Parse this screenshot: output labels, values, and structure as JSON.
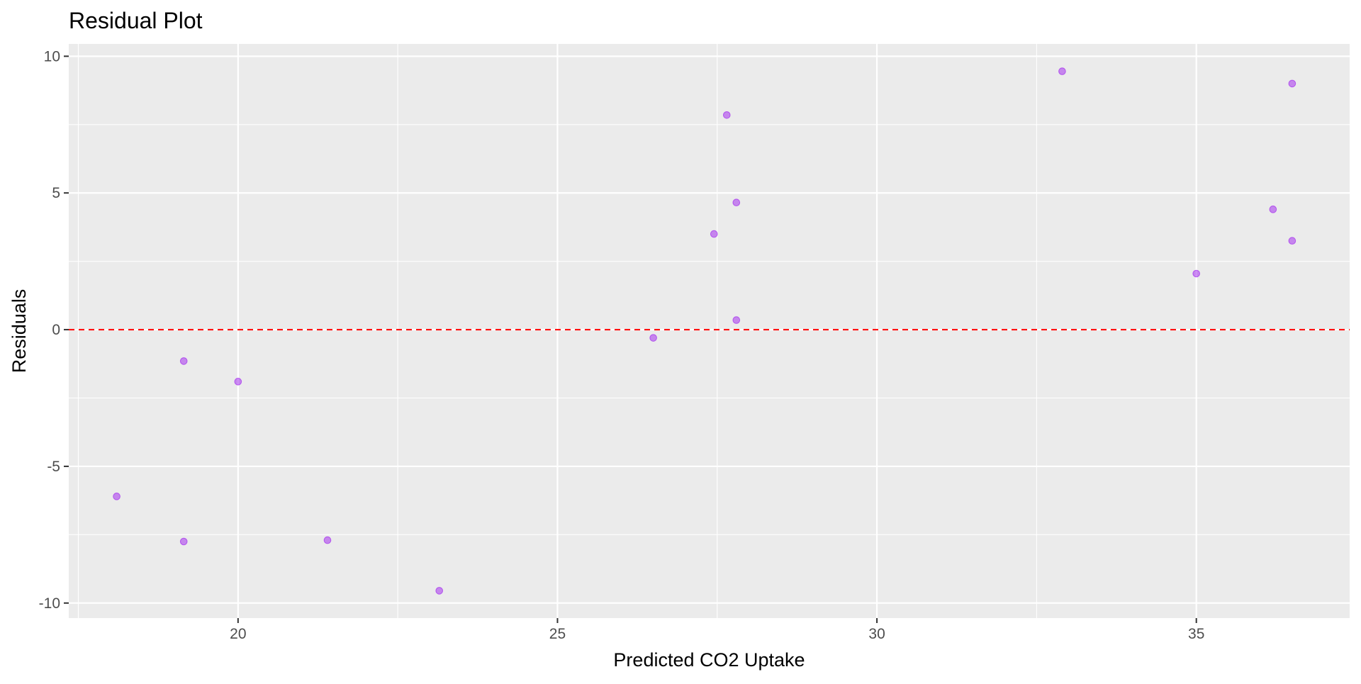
{
  "chart_data": {
    "type": "scatter",
    "title": "Residual Plot",
    "xlabel": "Predicted CO2 Uptake",
    "ylabel": "Residuals",
    "xlim": [
      17.35,
      37.4
    ],
    "ylim": [
      -10.55,
      10.45
    ],
    "x_ticks": [
      20,
      25,
      30,
      35
    ],
    "x_tick_labels": [
      "20",
      "25",
      "30",
      "35"
    ],
    "x_minor_ticks": [
      17.5,
      22.5,
      27.5,
      32.5,
      37.5
    ],
    "y_ticks": [
      -10,
      -5,
      0,
      5,
      10
    ],
    "y_tick_labels": [
      "-10",
      "-5",
      "0",
      "5",
      "10"
    ],
    "y_minor_ticks": [
      -7.5,
      -2.5,
      2.5,
      7.5
    ],
    "grid": true,
    "legend": "none",
    "reference_line": {
      "y": 0,
      "style": "dashed",
      "color": "#ff0000"
    },
    "point_color": "#a020f0",
    "point_alpha": 0.5,
    "points": [
      {
        "x": 18.1,
        "y": -6.1
      },
      {
        "x": 19.15,
        "y": -1.15
      },
      {
        "x": 19.15,
        "y": -7.75
      },
      {
        "x": 20.0,
        "y": -1.9
      },
      {
        "x": 21.4,
        "y": -7.7
      },
      {
        "x": 23.15,
        "y": -9.55
      },
      {
        "x": 26.5,
        "y": -0.3
      },
      {
        "x": 27.45,
        "y": 3.5
      },
      {
        "x": 27.65,
        "y": 7.85
      },
      {
        "x": 27.8,
        "y": 4.65
      },
      {
        "x": 27.8,
        "y": 0.35
      },
      {
        "x": 32.9,
        "y": 9.45
      },
      {
        "x": 35.0,
        "y": 2.05
      },
      {
        "x": 36.2,
        "y": 4.4
      },
      {
        "x": 36.5,
        "y": 9.0
      },
      {
        "x": 36.5,
        "y": 3.25
      }
    ]
  }
}
